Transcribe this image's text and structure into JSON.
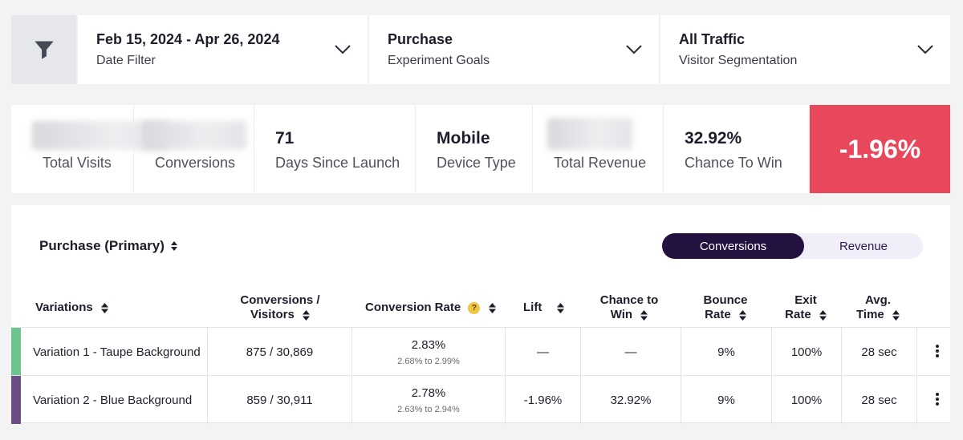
{
  "filters": [
    {
      "title": "Feb 15, 2024 - Apr 26, 2024",
      "subtitle": "Date Filter"
    },
    {
      "title": "Purchase",
      "subtitle": "Experiment Goals"
    },
    {
      "title": "All Traffic",
      "subtitle": "Visitor Segmentation"
    }
  ],
  "stats": {
    "total_visits": {
      "label": "Total Visits"
    },
    "conversions": {
      "label": "Conversions"
    },
    "days_since_launch": {
      "value": "71",
      "label": "Days Since Launch"
    },
    "device_type": {
      "value": "Mobile",
      "label": "Device Type"
    },
    "total_revenue": {
      "label": "Total Revenue"
    },
    "chance_to_win": {
      "value": "32.92%",
      "label": "Chance To Win"
    },
    "lift": {
      "value": "-1.96%",
      "color": "#e8475c"
    }
  },
  "goal_selector": {
    "label": "Purchase (Primary)"
  },
  "metric_toggle": {
    "active": "Conversions",
    "inactive": "Revenue"
  },
  "table": {
    "headers": {
      "variations": "Variations",
      "conv_visitors_1": "Conversions /",
      "conv_visitors_2": "Visitors",
      "conversion_rate": "Conversion Rate",
      "help": "?",
      "lift": "Lift",
      "chance_1": "Chance to",
      "chance_2": "Win",
      "bounce_1": "Bounce",
      "bounce_2": "Rate",
      "exit_1": "Exit",
      "exit_2": "Rate",
      "avg_1": "Avg.",
      "avg_2": "Time"
    },
    "rows": [
      {
        "name": "Variation 1 - Taupe Background",
        "color": "#6cc58f",
        "conv_visitors": "875 / 30,869",
        "rate": "2.83%",
        "range": "2.68% to 2.99%",
        "lift": "—",
        "chance": "—",
        "bounce": "9%",
        "exit": "100%",
        "avg_time": "28 sec"
      },
      {
        "name": "Variation 2 - Blue Background",
        "color": "#6a4f86",
        "conv_visitors": "859 / 30,911",
        "rate": "2.78%",
        "range": "2.63% to 2.94%",
        "lift": "-1.96%",
        "chance": "32.92%",
        "bounce": "9%",
        "exit": "100%",
        "avg_time": "28 sec"
      }
    ]
  }
}
